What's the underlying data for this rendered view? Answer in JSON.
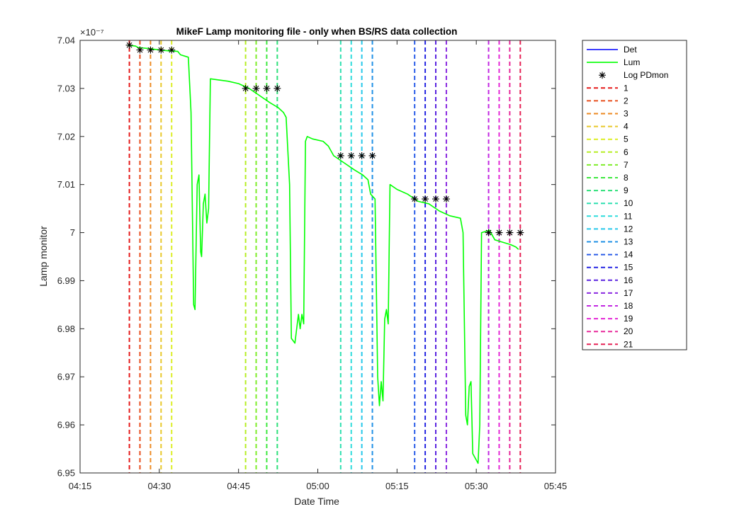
{
  "chart_data": {
    "type": "line",
    "title": "MikeF Lamp monitoring file - only when BS/RS data collection",
    "xlabel": "Date Time",
    "ylabel": "Lamp monitor",
    "y_exponent_label": "×10⁻⁷",
    "x_range": [
      "04:15",
      "05:45"
    ],
    "ylim": [
      6.95,
      7.04
    ],
    "y_ticks": [
      6.95,
      6.96,
      6.97,
      6.98,
      6.99,
      7,
      7.01,
      7.02,
      7.03,
      7.04
    ],
    "y_tick_labels": [
      "6.95",
      "6.96",
      "6.97",
      "6.98",
      "6.99",
      "7",
      "7.01",
      "7.02",
      "7.03",
      "7.04"
    ],
    "x_ticks": [
      "04:15",
      "04:30",
      "04:45",
      "05:00",
      "05:15",
      "05:30",
      "05:45"
    ],
    "grid": false,
    "legend_position": "outside-right",
    "series": [
      {
        "name": "Det",
        "color": "#0000ff",
        "style": "solid",
        "points": []
      },
      {
        "name": "Lum",
        "color": "#00ff00",
        "style": "solid",
        "points": [
          [
            "04:24:00",
            7.039
          ],
          [
            "04:25:30",
            7.0388
          ],
          [
            "04:26:00",
            7.0385
          ],
          [
            "04:28:00",
            7.0383
          ],
          [
            "04:30:00",
            7.038
          ],
          [
            "04:32:00",
            7.0378
          ],
          [
            "04:33:30",
            7.0377
          ],
          [
            "04:34:00",
            7.037
          ],
          [
            "04:35:30",
            7.0365
          ],
          [
            "04:36:00",
            7.025
          ],
          [
            "04:36:30",
            6.985
          ],
          [
            "04:36:45",
            6.984
          ],
          [
            "04:37:10",
            7.01
          ],
          [
            "04:37:30",
            7.012
          ],
          [
            "04:37:50",
            6.996
          ],
          [
            "04:38:00",
            6.995
          ],
          [
            "04:38:20",
            7.006
          ],
          [
            "04:38:40",
            7.008
          ],
          [
            "04:39:00",
            7.002
          ],
          [
            "04:39:20",
            7.005
          ],
          [
            "04:39:40",
            7.032
          ],
          [
            "04:41:00",
            7.0318
          ],
          [
            "04:43:00",
            7.0315
          ],
          [
            "04:45:00",
            7.031
          ],
          [
            "04:47:00",
            7.03
          ],
          [
            "04:49:00",
            7.0285
          ],
          [
            "04:51:00",
            7.027
          ],
          [
            "04:52:30",
            7.026
          ],
          [
            "04:53:30",
            7.025
          ],
          [
            "04:54:00",
            7.024
          ],
          [
            "04:54:40",
            7.01
          ],
          [
            "04:55:00",
            6.978
          ],
          [
            "04:55:40",
            6.977
          ],
          [
            "04:56:00",
            6.98
          ],
          [
            "04:56:20",
            6.983
          ],
          [
            "04:56:40",
            6.98
          ],
          [
            "04:57:00",
            6.983
          ],
          [
            "04:57:20",
            6.981
          ],
          [
            "04:57:40",
            7.019
          ],
          [
            "04:58:00",
            7.02
          ],
          [
            "04:59:00",
            7.0195
          ],
          [
            "05:01:00",
            7.019
          ],
          [
            "05:02:00",
            7.018
          ],
          [
            "05:03:00",
            7.016
          ],
          [
            "05:05:00",
            7.0145
          ],
          [
            "05:07:00",
            7.013
          ],
          [
            "05:08:30",
            7.012
          ],
          [
            "05:09:30",
            7.011
          ],
          [
            "05:10:00",
            7.008
          ],
          [
            "05:10:50",
            7.007
          ],
          [
            "05:11:20",
            6.97
          ],
          [
            "05:11:40",
            6.964
          ],
          [
            "05:12:00",
            6.969
          ],
          [
            "05:12:20",
            6.965
          ],
          [
            "05:12:40",
            6.982
          ],
          [
            "05:13:00",
            6.984
          ],
          [
            "05:13:20",
            6.981
          ],
          [
            "05:13:40",
            7.01
          ],
          [
            "05:15:00",
            7.009
          ],
          [
            "05:17:00",
            7.008
          ],
          [
            "05:19:00",
            7.0065
          ],
          [
            "05:21:00",
            7.006
          ],
          [
            "05:23:00",
            7.0045
          ],
          [
            "05:25:00",
            7.0035
          ],
          [
            "05:27:00",
            7.003
          ],
          [
            "05:27:30",
            7.0
          ],
          [
            "05:28:00",
            6.962
          ],
          [
            "05:28:20",
            6.96
          ],
          [
            "05:28:40",
            6.968
          ],
          [
            "05:29:00",
            6.969
          ],
          [
            "05:29:20",
            6.954
          ],
          [
            "05:30:20",
            6.952
          ],
          [
            "05:30:40",
            6.96
          ],
          [
            "05:31:00",
            7.0
          ],
          [
            "05:32:30",
            7.0005
          ],
          [
            "05:33:30",
            6.9985
          ],
          [
            "05:35:00",
            6.998
          ],
          [
            "05:36:30",
            6.9975
          ],
          [
            "05:37:30",
            6.997
          ],
          [
            "05:38:00",
            6.9965
          ]
        ]
      },
      {
        "name": "Log PDmon",
        "color": "#000000",
        "style": "markers",
        "marker": "*",
        "points": [
          [
            "04:24:20",
            7.039
          ],
          [
            "04:26:20",
            7.038
          ],
          [
            "04:28:20",
            7.038
          ],
          [
            "04:30:20",
            7.038
          ],
          [
            "04:32:20",
            7.038
          ],
          [
            "04:46:20",
            7.03
          ],
          [
            "04:48:20",
            7.03
          ],
          [
            "04:50:20",
            7.03
          ],
          [
            "04:52:20",
            7.03
          ],
          [
            "05:04:20",
            7.016
          ],
          [
            "05:06:20",
            7.016
          ],
          [
            "05:08:20",
            7.016
          ],
          [
            "05:10:20",
            7.016
          ],
          [
            "05:18:20",
            7.007
          ],
          [
            "05:20:20",
            7.007
          ],
          [
            "05:22:20",
            7.007
          ],
          [
            "05:24:20",
            7.007
          ],
          [
            "05:32:20",
            7.0
          ],
          [
            "05:34:20",
            7.0
          ],
          [
            "05:36:20",
            7.0
          ],
          [
            "05:38:20",
            7.0
          ]
        ]
      }
    ],
    "markers": [
      {
        "name": "1",
        "time": "04:24:20",
        "color": "#e61a1a"
      },
      {
        "name": "2",
        "time": "04:26:20",
        "color": "#e8501f"
      },
      {
        "name": "3",
        "time": "04:28:20",
        "color": "#ec8a22"
      },
      {
        "name": "4",
        "time": "04:30:20",
        "color": "#e8c82a"
      },
      {
        "name": "5",
        "time": "04:32:20",
        "color": "#dcee24"
      },
      {
        "name": "6",
        "time": "04:46:20",
        "color": "#b6ee24"
      },
      {
        "name": "7",
        "time": "04:48:20",
        "color": "#7fec2a"
      },
      {
        "name": "8",
        "time": "04:50:20",
        "color": "#3fe840"
      },
      {
        "name": "9",
        "time": "04:52:20",
        "color": "#2ee07a"
      },
      {
        "name": "10",
        "time": "05:04:20",
        "color": "#2ee0b0"
      },
      {
        "name": "11",
        "time": "05:06:20",
        "color": "#2edcdc"
      },
      {
        "name": "12",
        "time": "05:08:20",
        "color": "#26c8ea"
      },
      {
        "name": "13",
        "time": "05:10:20",
        "color": "#2090e6"
      },
      {
        "name": "14",
        "time": "05:18:20",
        "color": "#2a5ce8"
      },
      {
        "name": "15",
        "time": "05:20:20",
        "color": "#2424e2"
      },
      {
        "name": "16",
        "time": "05:22:20",
        "color": "#5a24e0"
      },
      {
        "name": "17",
        "time": "05:24:20",
        "color": "#8a28e0"
      },
      {
        "name": "18",
        "time": "05:32:20",
        "color": "#c228e2"
      },
      {
        "name": "19",
        "time": "05:34:20",
        "color": "#e428d6"
      },
      {
        "name": "20",
        "time": "05:36:20",
        "color": "#e8289a"
      },
      {
        "name": "21",
        "time": "05:38:20",
        "color": "#e62255"
      }
    ]
  }
}
